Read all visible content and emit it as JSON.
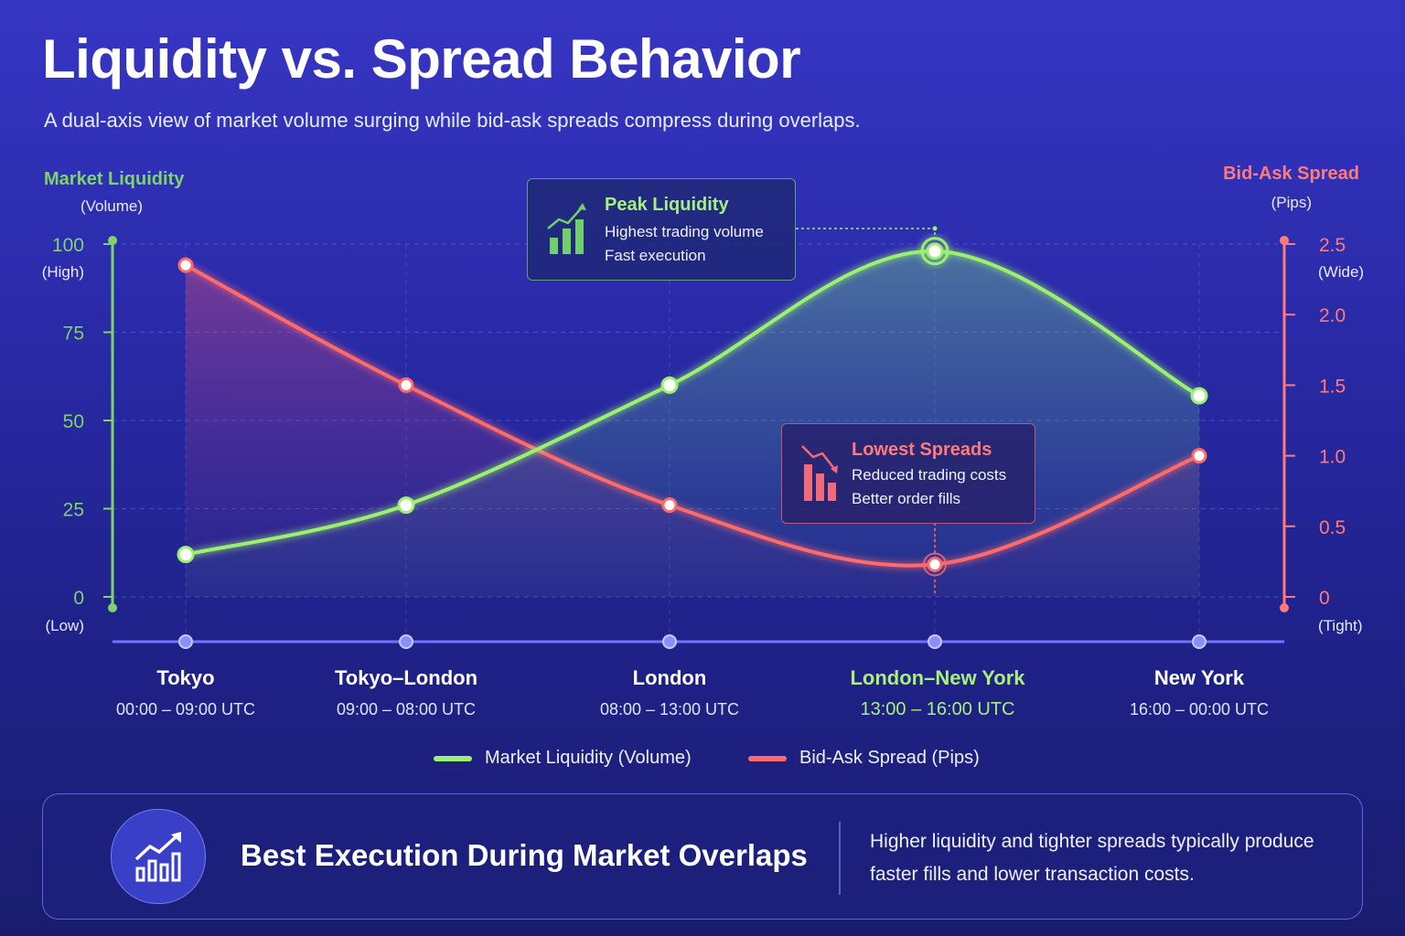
{
  "header": {
    "title": "Liquidity vs. Spread Behavior",
    "subtitle": "A dual-axis view of market volume surging while bid-ask spreads compress during overlaps."
  },
  "colors": {
    "liquidity": "#9cf06f",
    "spread": "#ff6b6b",
    "axis_left": "#7dd46a",
    "axis_right": "#ff7a7a",
    "highlight_session": "#a7f07a"
  },
  "callouts": {
    "peak": {
      "title": "Peak Liquidity",
      "lines": [
        "Highest trading volume",
        "Fast execution"
      ],
      "icon": "bar-chart-up-icon"
    },
    "low": {
      "title": "Lowest Spreads",
      "lines": [
        "Reduced trading costs",
        "Better order fills"
      ],
      "icon": "bar-chart-down-icon"
    }
  },
  "legend": {
    "liquidity_label": "Market Liquidity (Volume)",
    "spread_label": "Bid-Ask Spread (Pips)"
  },
  "summary": {
    "title": "Best Execution During Market Overlaps",
    "text": "Higher liquidity and tighter spreads typically produce faster fills and lower transaction costs.",
    "icon": "growth-chart-icon"
  },
  "chart_data": {
    "type": "line",
    "title": "Liquidity vs. Spread Behavior",
    "categories": [
      "Tokyo",
      "Tokyo–London",
      "London",
      "London–New York",
      "New York"
    ],
    "category_times": [
      "00:00 – 09:00 UTC",
      "09:00 – 08:00 UTC",
      "08:00 – 13:00 UTC",
      "13:00 – 16:00 UTC",
      "16:00 – 00:00 UTC"
    ],
    "highlight_category": "London–New York",
    "y_left": {
      "label": "Market Liquidity",
      "unit": "(Volume)",
      "ylim": [
        0,
        100
      ],
      "ticks": [
        0,
        25,
        50,
        75,
        100
      ],
      "tick_notes": {
        "top": "(High)",
        "bottom": "(Low)"
      }
    },
    "y_right": {
      "label": "Bid-Ask Spread",
      "unit": "(Pips)",
      "ylim": [
        0,
        2.5
      ],
      "ticks": [
        "0",
        "0.5",
        "1.0",
        "1.5",
        "2.0",
        "2.5"
      ],
      "tick_values": [
        0,
        0.5,
        1.0,
        1.5,
        2.0,
        2.5
      ],
      "tick_notes": {
        "top": "(Wide)",
        "bottom": "(Tight)"
      }
    },
    "series": [
      {
        "name": "Market Liquidity (Volume)",
        "axis": "left",
        "values": [
          12,
          26,
          60,
          98,
          57
        ]
      },
      {
        "name": "Bid-Ask Spread (Pips)",
        "axis": "right",
        "values": [
          2.35,
          1.5,
          0.65,
          0.23,
          1.0
        ]
      }
    ],
    "grid": true,
    "legend_position": "bottom-center"
  }
}
